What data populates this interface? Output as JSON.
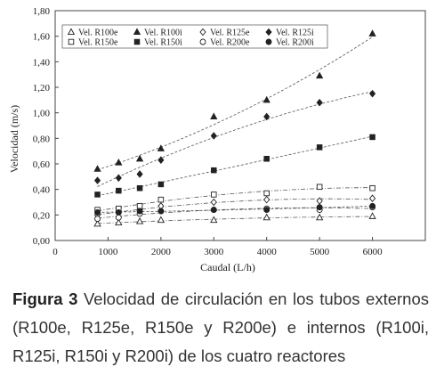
{
  "caption": {
    "label": "Figura 3",
    "text": "Velocidad de circulación en los tubos externos (R100e, R125e, R150e y R200e) e internos (R100i, R125i, R150i y R200i) de los cuatro reactores"
  },
  "chart_data": {
    "type": "scatter",
    "xlabel": "Caudal (L/h)",
    "ylabel": "Velocidad (m/s)",
    "xlim": [
      0,
      7000
    ],
    "ylim": [
      0,
      1.8
    ],
    "xticks": [
      "0",
      "1000",
      "2000",
      "3000",
      "4000",
      "5000",
      "6000"
    ],
    "yticks": [
      "0,00",
      "0,20",
      "0,40",
      "0,60",
      "0,80",
      "1,00",
      "1,20",
      "1,40",
      "1,60",
      "1,80"
    ],
    "grid": false,
    "legend_position": "top",
    "x": [
      800,
      1200,
      1600,
      2000,
      3000,
      4000,
      5000,
      6000
    ],
    "series": [
      {
        "name": "Vel. R100e",
        "marker": "triangle-open",
        "values": [
          0.13,
          0.14,
          0.15,
          0.16,
          0.16,
          0.18,
          0.18,
          0.19
        ]
      },
      {
        "name": "Vel. R100i",
        "marker": "triangle-filled",
        "values": [
          0.56,
          0.61,
          0.64,
          0.72,
          0.97,
          1.1,
          1.29,
          1.62
        ]
      },
      {
        "name": "Vel. R125e",
        "marker": "diamond-open",
        "values": [
          0.2,
          0.22,
          0.24,
          0.27,
          0.3,
          0.32,
          0.31,
          0.33
        ]
      },
      {
        "name": "Vel. R125i",
        "marker": "diamond-filled",
        "values": [
          0.47,
          0.49,
          0.52,
          0.63,
          0.82,
          0.97,
          1.08,
          1.15
        ]
      },
      {
        "name": "Vel. R150e",
        "marker": "square-open",
        "values": [
          0.24,
          0.25,
          0.27,
          0.32,
          0.36,
          0.37,
          0.42,
          0.41
        ]
      },
      {
        "name": "Vel. R150i",
        "marker": "square-filled",
        "values": [
          0.36,
          0.39,
          0.41,
          0.44,
          0.55,
          0.64,
          0.73,
          0.81
        ]
      },
      {
        "name": "Vel. R200e",
        "marker": "circle-open",
        "values": [
          0.17,
          0.18,
          0.21,
          0.23,
          0.24,
          0.25,
          0.24,
          0.26
        ]
      },
      {
        "name": "Vel. R200i",
        "marker": "circle-filled",
        "values": [
          0.22,
          0.22,
          0.23,
          0.23,
          0.24,
          0.24,
          0.26,
          0.27
        ]
      }
    ]
  }
}
